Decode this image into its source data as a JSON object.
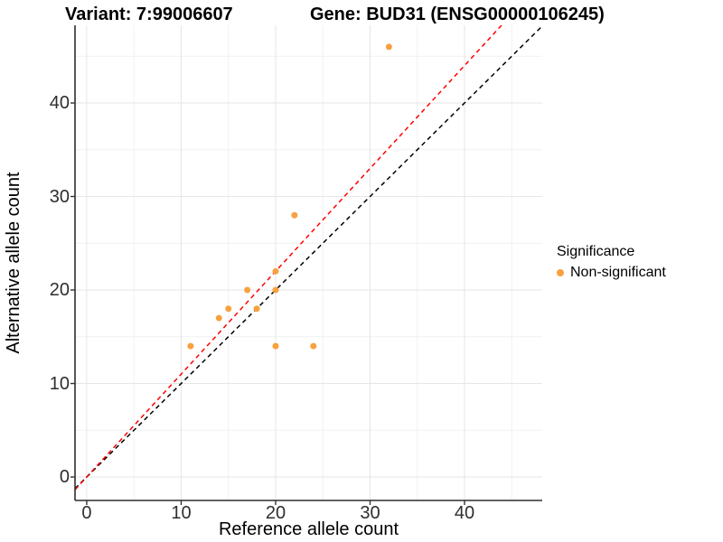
{
  "chart_data": {
    "type": "scatter",
    "title_left": "Variant: 7:99006607",
    "title_right": "Gene: BUD31 (ENSG00000106245)",
    "xlabel": "Reference allele count",
    "ylabel": "Alternative allele count",
    "xlim": [
      -1.24,
      48.23
    ],
    "ylim": [
      -2.51,
      48.31
    ],
    "x_ticks": [
      0,
      10,
      20,
      30,
      40
    ],
    "y_ticks": [
      0,
      10,
      20,
      30,
      40
    ],
    "x_minor_ticks": [
      5,
      15,
      25,
      35,
      45
    ],
    "y_minor_ticks": [
      5,
      15,
      25,
      35,
      45
    ],
    "grid": true,
    "series": [
      {
        "name": "Non-significant",
        "points": [
          [
            11,
            14
          ],
          [
            14,
            17
          ],
          [
            15,
            18
          ],
          [
            17,
            20
          ],
          [
            18,
            18
          ],
          [
            20,
            14
          ],
          [
            20,
            20
          ],
          [
            20,
            22
          ],
          [
            22,
            28
          ],
          [
            24,
            14
          ],
          [
            32,
            46
          ]
        ]
      }
    ],
    "lines": [
      {
        "name": "identity-line",
        "slope": 1.0,
        "intercept": 0,
        "color": "#000000",
        "dashed": true
      },
      {
        "name": "fitted-line",
        "slope": 1.1,
        "intercept": 0,
        "color": "#ff0000",
        "dashed": true
      }
    ],
    "legend": {
      "title": "Significance",
      "position": "right",
      "items": [
        {
          "label": "Non-significant",
          "color": "#f8a13e"
        }
      ]
    },
    "colors": {
      "point": "#f8a13e",
      "grid_major": "#e6e6e6",
      "grid_minor": "#f1f1f1",
      "axis_line": "#2e2e2e",
      "tick_mark": "#333333"
    }
  }
}
